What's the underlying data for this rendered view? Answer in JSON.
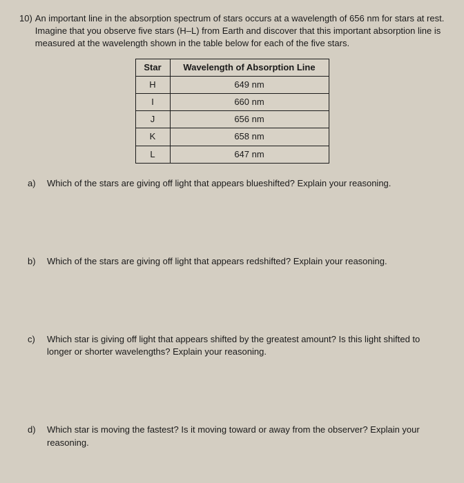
{
  "question": {
    "number": "10)",
    "text": "An important line in the absorption spectrum of stars occurs at a wavelength of 656 nm for stars at rest. Imagine that you observe five stars (H–L) from Earth and discover that this important absorption line is measured at the wavelength shown in the table below for each of the five stars."
  },
  "table": {
    "headers": [
      "Star",
      "Wavelength of Absorption Line"
    ],
    "rows": [
      [
        "H",
        "649 nm"
      ],
      [
        "I",
        "660 nm"
      ],
      [
        "J",
        "656 nm"
      ],
      [
        "K",
        "658 nm"
      ],
      [
        "L",
        "647 nm"
      ]
    ]
  },
  "subquestions": [
    {
      "label": "a)",
      "text": "Which of the stars are giving off light that appears blueshifted? Explain your reasoning."
    },
    {
      "label": "b)",
      "text": "Which of the stars are giving off light that appears redshifted? Explain your reasoning."
    },
    {
      "label": "c)",
      "text": "Which star is giving off light that appears shifted by the greatest amount? Is this light shifted to longer or shorter wavelengths? Explain your reasoning."
    },
    {
      "label": "d)",
      "text": "Which star is moving the fastest? Is it moving toward or away from the observer? Explain your reasoning."
    }
  ],
  "colors": {
    "background": "#d4cec2",
    "text": "#1a1a1a",
    "border": "#1a1a1a"
  }
}
